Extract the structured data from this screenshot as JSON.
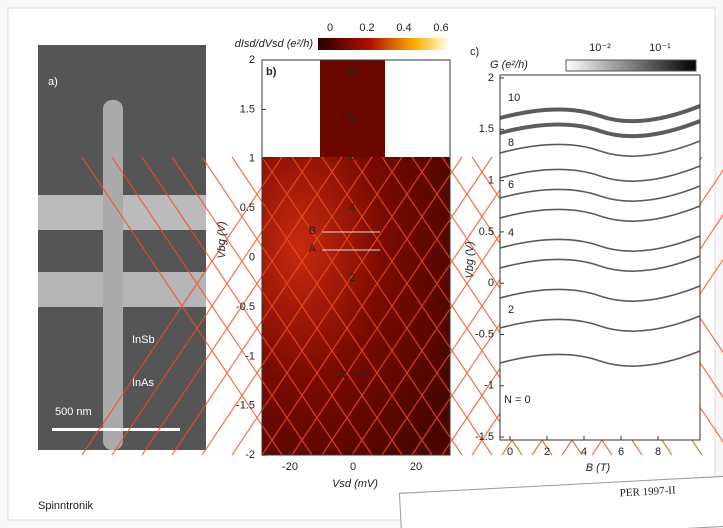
{
  "panel_a": {
    "label": "a)",
    "material_top": "InSb",
    "material_bottom": "InAs",
    "scale_bar": "500 nm"
  },
  "panel_b": {
    "label": "b)",
    "colorbar_title": "dIsd/dVsd (e²/h)",
    "colorbar_ticks": [
      "0",
      "0.2",
      "0.4",
      "0.6"
    ],
    "y_label": "Vbg (V)",
    "x_label": "Vsd (mV)",
    "y_ticks": [
      "2",
      "1.5",
      "1",
      "0.5",
      "0",
      "-0.5",
      "-1",
      "-1.5",
      "-2"
    ],
    "x_ticks": [
      "-20",
      "0",
      "20"
    ],
    "state_labels": [
      "10",
      "8",
      "6",
      "4",
      "2",
      "N = 0"
    ],
    "line_labels": [
      "B",
      "A"
    ]
  },
  "panel_c": {
    "label": "c)",
    "colorbar_title": "G (e²/h)",
    "colorbar_ticks": [
      "10⁻²",
      "10⁻¹"
    ],
    "y_label": "Vbg (V)",
    "x_label": "B (T)",
    "y_ticks": [
      "2",
      "1.5",
      "1",
      "0.5",
      "0",
      "-0.5",
      "-1",
      "-1.5"
    ],
    "x_ticks": [
      "0",
      "2",
      "4",
      "6",
      "8"
    ],
    "state_labels": [
      "10",
      "8",
      "6",
      "4",
      "2",
      "N = 0"
    ]
  },
  "caption": "Spinntronik",
  "paper_snippet": "PER 1997-II"
}
